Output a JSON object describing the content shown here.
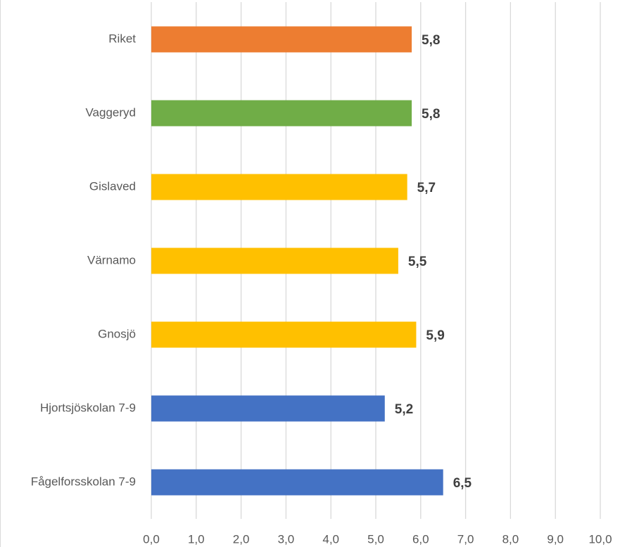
{
  "chart_data": {
    "type": "barh",
    "categories": [
      "Riket",
      "Vaggeryd",
      "Gislaved",
      "Värnamo",
      "Gnosjö",
      "Hjortsjöskolan 7-9",
      "Fågelforsskolan 7-9"
    ],
    "values": [
      5.8,
      5.8,
      5.7,
      5.5,
      5.9,
      5.2,
      6.5
    ],
    "value_labels": [
      "5,8",
      "5,8",
      "5,7",
      "5,5",
      "5,9",
      "5,2",
      "6,5"
    ],
    "colors": [
      "#ed7d31",
      "#70ad47",
      "#ffc000",
      "#ffc000",
      "#ffc000",
      "#4472c4",
      "#4472c4"
    ],
    "xlim": [
      0,
      10
    ],
    "xticks": [
      {
        "value": 0,
        "label": "0,0"
      },
      {
        "value": 1,
        "label": "1,0"
      },
      {
        "value": 2,
        "label": "2,0"
      },
      {
        "value": 3,
        "label": "3,0"
      },
      {
        "value": 4,
        "label": "4,0"
      },
      {
        "value": 5,
        "label": "5,0"
      },
      {
        "value": 6,
        "label": "6,0"
      },
      {
        "value": 7,
        "label": "7,0"
      },
      {
        "value": 8,
        "label": "8,0"
      },
      {
        "value": 9,
        "label": "9,0"
      },
      {
        "value": 10,
        "label": "10,0"
      }
    ],
    "grid": true
  }
}
